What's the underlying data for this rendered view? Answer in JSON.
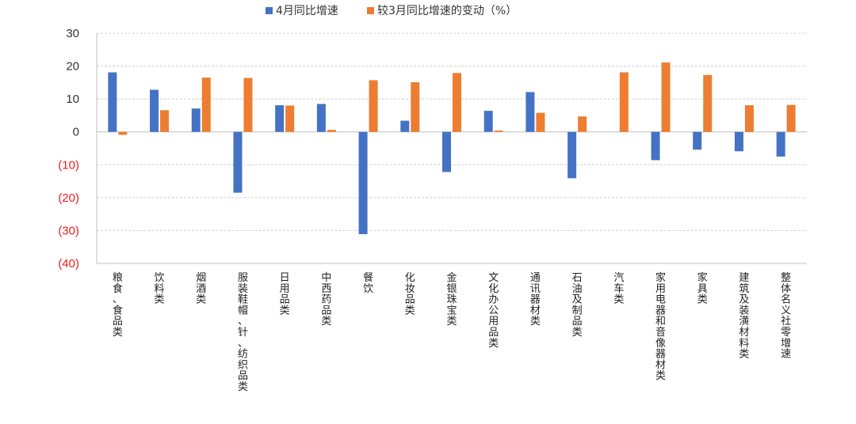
{
  "chart_data": {
    "type": "bar",
    "title": "",
    "xlabel": "",
    "ylabel": "",
    "ylim": [
      -40,
      30
    ],
    "yticks": [
      30,
      20,
      10,
      0,
      -10,
      -20,
      -30,
      -40
    ],
    "ytick_labels": [
      "30",
      "20",
      "10",
      "0",
      "(10)",
      "(20)",
      "(30)",
      "(40)"
    ],
    "grid": true,
    "legend_position": "top-center",
    "categories": [
      "粮食、食品类",
      "饮料类",
      "烟酒类",
      "服装鞋帽、针、纺织品类",
      "日用品类",
      "中西药品类",
      "餐饮",
      "化妆品类",
      "金银珠宝类",
      "文化办公用品类",
      "通讯器材类",
      "石油及制品类",
      "汽车类",
      "家用电器和音像器材类",
      "家具类",
      "建筑及装潢材料类",
      "整体名义社零增速"
    ],
    "series": [
      {
        "name": "4月同比增速",
        "color": "#4472C4",
        "values": [
          18.1,
          12.8,
          7.1,
          -18.5,
          8.1,
          8.5,
          -31.1,
          3.4,
          -12.2,
          6.4,
          12.1,
          -14.1,
          null,
          -8.6,
          -5.4,
          -5.9,
          -7.5
        ]
      },
      {
        "name": "较3月同比增速的变动（%）",
        "color": "#ED7D31",
        "values": [
          -0.9,
          6.6,
          16.5,
          16.4,
          8.0,
          0.6,
          15.7,
          15.1,
          17.9,
          0.4,
          5.8,
          4.7,
          18.1,
          21.1,
          17.3,
          8.1,
          8.2
        ]
      }
    ]
  }
}
